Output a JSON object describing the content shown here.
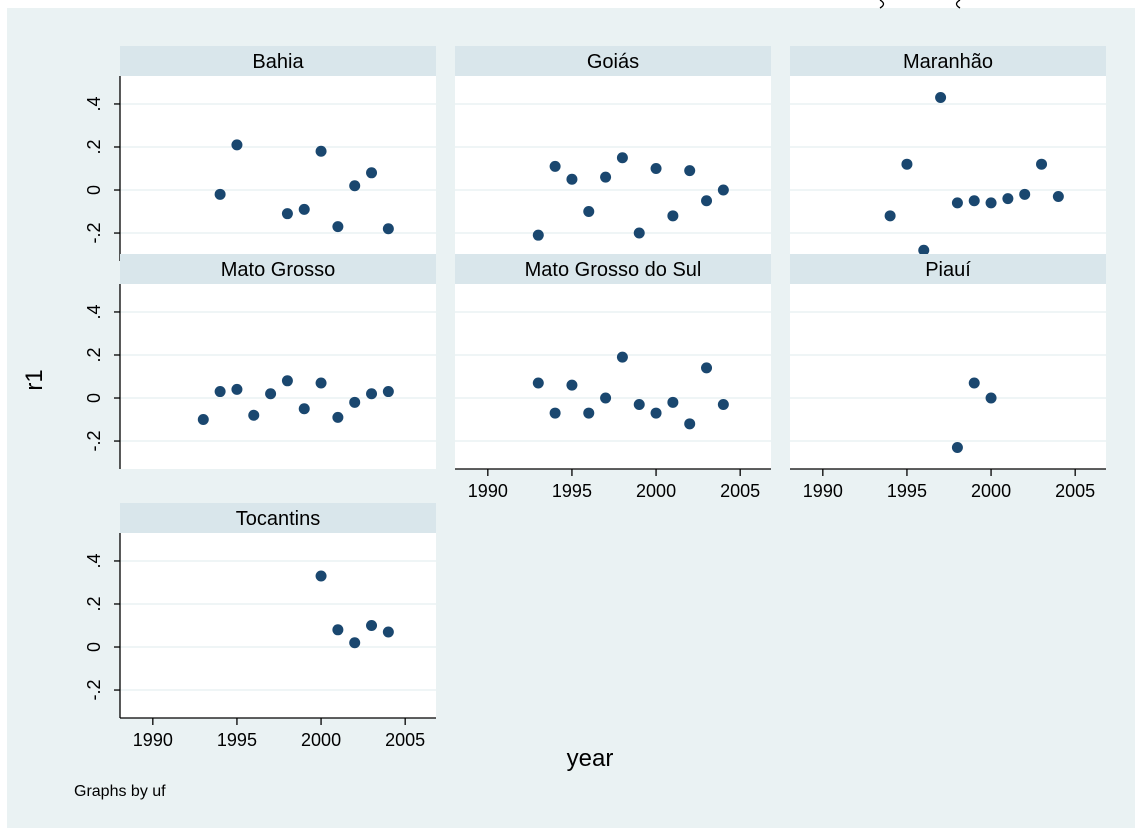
{
  "chart_data": {
    "type": "scatter",
    "xlabel": "year",
    "ylabel": "r1",
    "xlim": [
      1989,
      2006
    ],
    "ylim": [
      -0.33,
      0.53
    ],
    "xticks": [
      1990,
      1995,
      2000,
      2005
    ],
    "xtick_labels": [
      "1990",
      "1995",
      "2000",
      "2005"
    ],
    "yticks": [
      -0.2,
      0,
      0.2,
      0.4
    ],
    "ytick_labels": [
      "-.2",
      "0",
      ".2",
      ".4"
    ],
    "grid": true,
    "note": "Graphs by uf",
    "marker_color": "#1a476f",
    "background_color": "#eaf2f3",
    "panels": [
      {
        "name": "Bahia",
        "x": [
          1994,
          1995,
          1998,
          1999,
          2000,
          2001,
          2002,
          2003,
          2004
        ],
        "y": [
          -0.02,
          0.21,
          -0.11,
          -0.09,
          0.18,
          -0.17,
          0.02,
          0.08,
          -0.18
        ]
      },
      {
        "name": "Goiás",
        "x": [
          1993,
          1994,
          1995,
          1996,
          1997,
          1998,
          1999,
          2000,
          2001,
          2002,
          2003,
          2004
        ],
        "y": [
          -0.21,
          0.11,
          0.05,
          -0.1,
          0.06,
          0.15,
          -0.2,
          0.1,
          -0.12,
          0.09,
          -0.05,
          0.0
        ]
      },
      {
        "name": "Maranhão",
        "x": [
          1994,
          1995,
          1996,
          1997,
          1998,
          1999,
          2000,
          2001,
          2002,
          2003,
          2004
        ],
        "y": [
          -0.12,
          0.12,
          -0.28,
          0.43,
          -0.06,
          -0.05,
          -0.06,
          -0.04,
          -0.02,
          0.12,
          -0.03
        ]
      },
      {
        "name": "Mato Grosso",
        "x": [
          1993,
          1994,
          1995,
          1996,
          1997,
          1998,
          1999,
          2000,
          2001,
          2002,
          2003,
          2004
        ],
        "y": [
          -0.1,
          0.03,
          0.04,
          -0.08,
          0.02,
          0.08,
          -0.05,
          0.07,
          -0.09,
          -0.02,
          0.02,
          0.03
        ]
      },
      {
        "name": "Mato Grosso do Sul",
        "x": [
          1993,
          1994,
          1995,
          1996,
          1997,
          1998,
          1999,
          2000,
          2001,
          2002,
          2003,
          2004
        ],
        "y": [
          0.07,
          -0.07,
          0.06,
          -0.07,
          0.0,
          0.19,
          -0.03,
          -0.07,
          -0.02,
          -0.12,
          0.14,
          -0.03
        ]
      },
      {
        "name": "Piauí",
        "x": [
          1998,
          1999,
          2000
        ],
        "y": [
          -0.23,
          0.07,
          0.0
        ]
      },
      {
        "name": "Tocantins",
        "x": [
          2000,
          2001,
          2002,
          2003,
          2004
        ],
        "y": [
          0.33,
          0.08,
          0.02,
          0.1,
          0.07
        ]
      }
    ]
  }
}
